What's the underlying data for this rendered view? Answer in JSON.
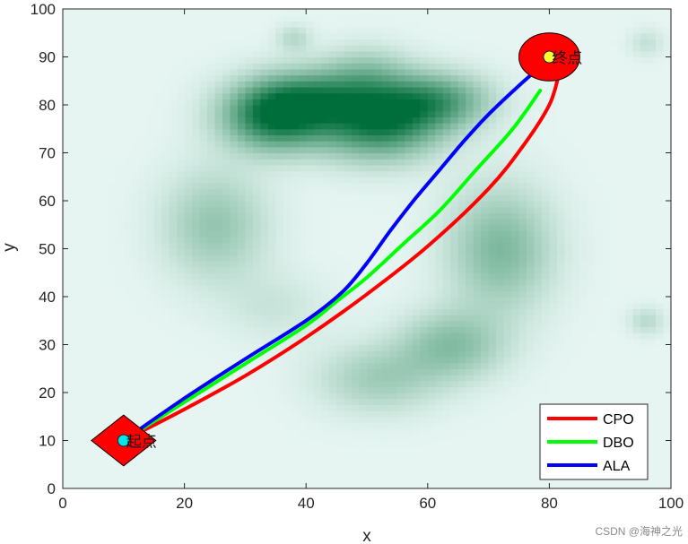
{
  "chart_data": {
    "type": "line",
    "title": "",
    "xlabel": "x",
    "ylabel": "y",
    "xlim": [
      0,
      100
    ],
    "ylim": [
      0,
      100
    ],
    "xticks": [
      0,
      20,
      40,
      60,
      80,
      100
    ],
    "yticks": [
      0,
      10,
      20,
      30,
      40,
      50,
      60,
      70,
      80,
      90,
      100
    ],
    "grid": false,
    "legend_position": "bottom-right",
    "background": {
      "type": "heatmap",
      "base_color": "#e6f5f2",
      "peak_color": "#006e3a",
      "hills": [
        {
          "x": 35,
          "y": 78,
          "sx": 6,
          "sy": 5,
          "w": 1.0
        },
        {
          "x": 52,
          "y": 77,
          "sx": 7,
          "sy": 5.5,
          "w": 0.95
        },
        {
          "x": 62,
          "y": 81,
          "sx": 6,
          "sy": 4,
          "w": 0.55
        },
        {
          "x": 42,
          "y": 82,
          "sx": 6,
          "sy": 4,
          "w": 0.4
        },
        {
          "x": 50,
          "y": 87,
          "sx": 5,
          "sy": 4,
          "w": 0.25
        },
        {
          "x": 25,
          "y": 55,
          "sx": 6,
          "sy": 8,
          "w": 0.35
        },
        {
          "x": 72,
          "y": 50,
          "sx": 6,
          "sy": 9,
          "w": 0.45
        },
        {
          "x": 64,
          "y": 30,
          "sx": 6,
          "sy": 5,
          "w": 0.4
        },
        {
          "x": 52,
          "y": 23,
          "sx": 7,
          "sy": 5,
          "w": 0.3
        },
        {
          "x": 38,
          "y": 94,
          "sx": 2,
          "sy": 2,
          "w": 0.2
        },
        {
          "x": 96,
          "y": 93,
          "sx": 2,
          "sy": 2,
          "w": 0.15
        },
        {
          "x": 96,
          "y": 35,
          "sx": 2,
          "sy": 2,
          "w": 0.2
        },
        {
          "x": 35,
          "y": 38,
          "sx": 6,
          "sy": 5,
          "w": 0.12
        }
      ]
    },
    "series": [
      {
        "name": "CPO",
        "color": "#ff0000",
        "x": [
          10,
          20,
          30,
          40,
          50,
          60,
          70,
          76,
          80,
          81.5
        ],
        "y": [
          10,
          16.5,
          23.5,
          31.5,
          40.5,
          50.5,
          62.5,
          72,
          80,
          86
        ]
      },
      {
        "name": "DBO",
        "color": "#00ff00",
        "x": [
          10,
          20,
          30,
          40,
          45,
          50,
          56,
          62,
          68,
          74,
          78.5
        ],
        "y": [
          10,
          18,
          26,
          34,
          39,
          44,
          51,
          58,
          66.5,
          75,
          83
        ]
      },
      {
        "name": "ALA",
        "color": "#0000ff",
        "x": [
          10,
          20,
          30,
          40,
          46,
          50,
          54,
          58,
          62,
          66,
          70,
          75,
          79.5
        ],
        "y": [
          10,
          18.8,
          27,
          35,
          41,
          47,
          54,
          60.5,
          66.5,
          72.5,
          78,
          84,
          89
        ]
      }
    ],
    "markers": [
      {
        "name": "start",
        "label": "起点",
        "x": 10,
        "y": 10,
        "shape": "diamond",
        "fill": "#ff0000",
        "inner_fill": "#00e5ee",
        "size": 5.3
      },
      {
        "name": "goal",
        "label": "终点",
        "x": 80,
        "y": 90,
        "shape": "circle",
        "fill": "#ff0000",
        "inner_fill": "#ffff33",
        "size": 5
      }
    ]
  },
  "watermark": "CSDN @海神之光"
}
